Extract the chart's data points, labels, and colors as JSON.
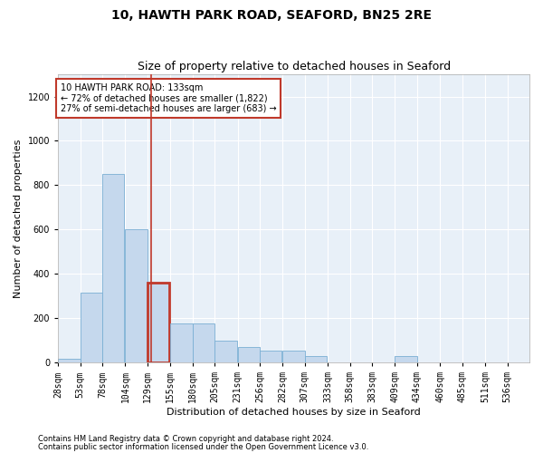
{
  "title": "10, HAWTH PARK ROAD, SEAFORD, BN25 2RE",
  "subtitle": "Size of property relative to detached houses in Seaford",
  "xlabel": "Distribution of detached houses by size in Seaford",
  "ylabel": "Number of detached properties",
  "footnote1": "Contains HM Land Registry data © Crown copyright and database right 2024.",
  "footnote2": "Contains public sector information licensed under the Open Government Licence v3.0.",
  "bar_color": "#c5d8ed",
  "bar_edge_color": "#7aafd4",
  "highlight_bar_edge_color": "#c0392b",
  "vline_color": "#c0392b",
  "annotation_box_edge": "#c0392b",
  "annotation_text": "10 HAWTH PARK ROAD: 133sqm\n← 72% of detached houses are smaller (1,822)\n27% of semi-detached houses are larger (683) →",
  "property_sqm": 133,
  "property_bin_index": 4,
  "categories": [
    "28sqm",
    "53sqm",
    "78sqm",
    "104sqm",
    "129sqm",
    "155sqm",
    "180sqm",
    "205sqm",
    "231sqm",
    "256sqm",
    "282sqm",
    "307sqm",
    "333sqm",
    "358sqm",
    "383sqm",
    "409sqm",
    "434sqm",
    "460sqm",
    "485sqm",
    "511sqm",
    "536sqm"
  ],
  "bin_edges": [
    28,
    53,
    78,
    104,
    129,
    155,
    180,
    205,
    231,
    256,
    282,
    307,
    333,
    358,
    383,
    409,
    434,
    460,
    485,
    511,
    536
  ],
  "values": [
    15,
    315,
    850,
    600,
    360,
    175,
    175,
    100,
    70,
    55,
    55,
    30,
    0,
    0,
    0,
    30,
    0,
    0,
    0,
    0,
    0
  ],
  "ylim": [
    0,
    1300
  ],
  "yticks": [
    0,
    200,
    400,
    600,
    800,
    1000,
    1200
  ],
  "plot_bg_color": "#e8f0f8",
  "title_fontsize": 10,
  "subtitle_fontsize": 9,
  "axis_label_fontsize": 8,
  "tick_fontsize": 7,
  "annotation_fontsize": 7,
  "footnote_fontsize": 6
}
